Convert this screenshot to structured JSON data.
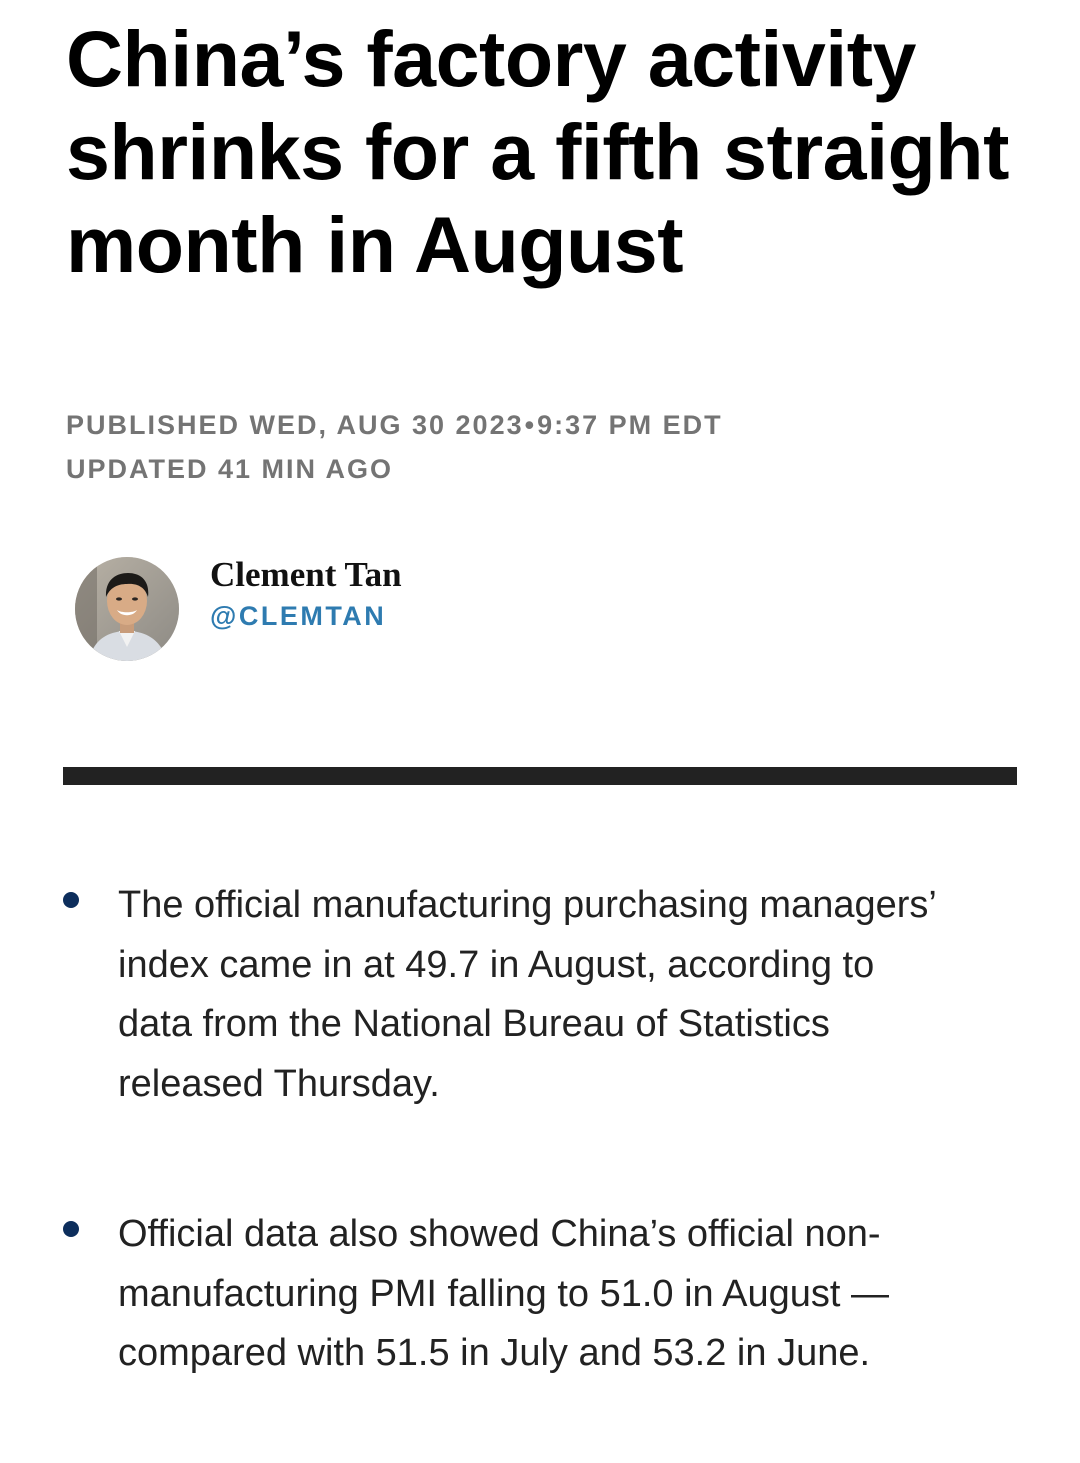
{
  "article": {
    "headline": "China’s factory activity shrinks for a fifth straight month in August",
    "published_label": "PUBLISHED WED, AUG 30 2023",
    "published_separator": "•",
    "published_time": "9:37 PM EDT",
    "updated_label": "UPDATED 41 MIN AGO"
  },
  "author": {
    "name": "Clement Tan",
    "handle": "@CLEMTAN",
    "avatar_icon": "author-photo",
    "handle_color": "#2e7bb0"
  },
  "key_points": [
    {
      "text": "The official manufacturing purchasing managers’ index came in at 49.7 in August, according to data from the National Bureau of Statistics released Thursday."
    },
    {
      "text": "Official data also showed China’s official non-manufacturing PMI falling to 51.0 in August — compared with 51.5 in July and 53.2 in June."
    }
  ],
  "colors": {
    "bullet": "#0d2e5c",
    "divider": "#222222",
    "meta_text": "#747474"
  }
}
